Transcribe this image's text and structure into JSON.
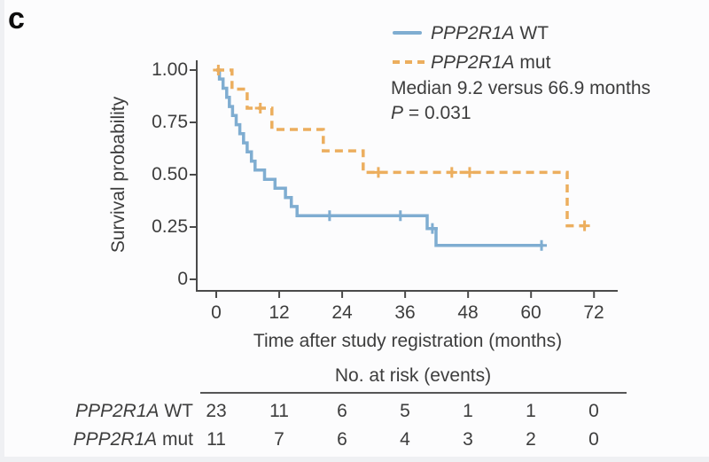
{
  "panel_label": "c",
  "colors": {
    "wt_blue": "#7fadd1",
    "mut_orange": "#ecae5e",
    "axis": "#4a4a4a",
    "text": "#3d3d3d"
  },
  "legend": {
    "series": [
      {
        "gene": "PPP2R1A",
        "suffix": " WT",
        "style": "solid"
      },
      {
        "gene": "PPP2R1A",
        "suffix": " mut",
        "style": "dashed"
      }
    ],
    "median_text": "Median 9.2 versus 66.9 months",
    "p_label": "P",
    "p_value": " = 0.031"
  },
  "axes": {
    "y_label": "Survival probability",
    "x_label": "Time after study registration (months)",
    "y_tick_labels": [
      "1.00",
      "0.75",
      "0.50",
      "0.25",
      "0"
    ],
    "x_tick_labels": [
      "0",
      "12",
      "24",
      "36",
      "48",
      "60",
      "72"
    ]
  },
  "risk_table": {
    "title": "No. at risk (events)",
    "rows": [
      {
        "gene": "PPP2R1A",
        "suffix": " WT",
        "counts": [
          "23",
          "11",
          "6",
          "5",
          "1",
          "1",
          "0"
        ]
      },
      {
        "gene": "PPP2R1A",
        "suffix": " mut",
        "counts": [
          "11",
          "7",
          "6",
          "4",
          "3",
          "2",
          "0"
        ]
      }
    ]
  },
  "chart_data": {
    "type": "line",
    "subtype": "kaplan-meier-step",
    "title": "",
    "xlabel": "Time after study registration (months)",
    "ylabel": "Survival probability",
    "xlim": [
      0,
      76
    ],
    "ylim": [
      0,
      1.0
    ],
    "x_ticks": [
      0,
      12,
      24,
      36,
      48,
      60,
      72
    ],
    "y_ticks": [
      1.0,
      0.75,
      0.5,
      0.25,
      0
    ],
    "grid": false,
    "legend_position": "top-right",
    "annotations": [
      "Median 9.2 versus 66.9 months",
      "P = 0.031"
    ],
    "series": [
      {
        "name": "PPP2R1A WT",
        "color": "#7fadd1",
        "style": "solid",
        "steps": [
          [
            0,
            1.0
          ],
          [
            0.6,
            0.957
          ],
          [
            1.3,
            0.913
          ],
          [
            2.0,
            0.87
          ],
          [
            2.5,
            0.826
          ],
          [
            3.1,
            0.783
          ],
          [
            3.8,
            0.739
          ],
          [
            4.5,
            0.696
          ],
          [
            5.2,
            0.652
          ],
          [
            5.9,
            0.609
          ],
          [
            6.7,
            0.565
          ],
          [
            7.4,
            0.522
          ],
          [
            9.2,
            0.478
          ],
          [
            11.2,
            0.435
          ],
          [
            13.2,
            0.391
          ],
          [
            14.3,
            0.348
          ],
          [
            15.4,
            0.304
          ],
          [
            40.2,
            0.243
          ],
          [
            41.9,
            0.162
          ]
        ],
        "end_x": 62.3,
        "censors": [
          [
            21.6,
            0.304
          ],
          [
            35.1,
            0.304
          ],
          [
            41.2,
            0.243
          ],
          [
            62.0,
            0.162
          ]
        ],
        "median_months": 9.2
      },
      {
        "name": "PPP2R1A mut",
        "color": "#ecae5e",
        "style": "dashed",
        "steps": [
          [
            0,
            1.0
          ],
          [
            3.0,
            0.909
          ],
          [
            5.9,
            0.818
          ],
          [
            10.6,
            0.716
          ],
          [
            20.4,
            0.614
          ],
          [
            28.0,
            0.511
          ],
          [
            66.9,
            0.256
          ]
        ],
        "end_x": 70.5,
        "censors": [
          [
            0.4,
            1.0
          ],
          [
            8.4,
            0.818
          ],
          [
            30.9,
            0.511
          ],
          [
            44.9,
            0.511
          ],
          [
            48.3,
            0.511
          ],
          [
            70.2,
            0.256
          ]
        ],
        "median_months": 66.9
      }
    ],
    "p_value": 0.031
  }
}
